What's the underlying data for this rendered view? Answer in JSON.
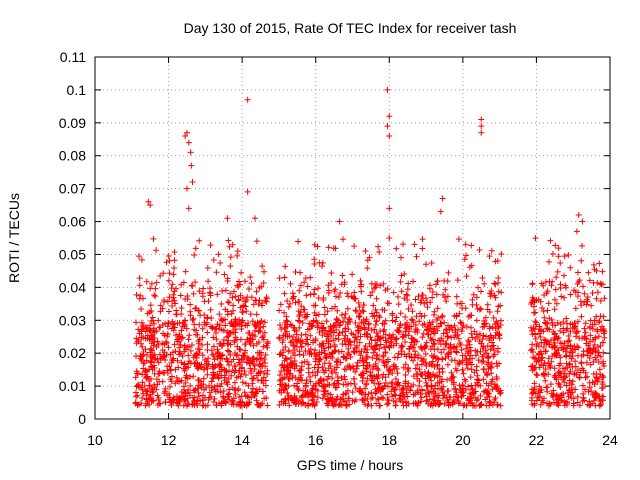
{
  "chart_data": {
    "type": "scatter",
    "title": "Day 130 of 2015, Rate Of TEC Index for receiver tash",
    "xlabel": "GPS time / hours",
    "ylabel": "ROTI / TECUs",
    "xlim": [
      10,
      24
    ],
    "ylim": [
      0,
      0.11
    ],
    "xticks": [
      10,
      12,
      14,
      16,
      18,
      20,
      22,
      24
    ],
    "yticks": [
      0,
      0.01,
      0.02,
      0.03,
      0.04,
      0.05,
      0.06,
      0.07,
      0.08,
      0.09,
      0.1,
      0.11
    ],
    "grid": true,
    "marker": "+",
    "color": "#ff0000",
    "coverage_segments": [
      {
        "x": [
          11.1,
          14.7
        ]
      },
      {
        "x": [
          15.0,
          21.05
        ]
      },
      {
        "x": [
          21.85,
          23.85
        ]
      }
    ],
    "notable_points": [
      {
        "x": 11.45,
        "y": 0.066
      },
      {
        "x": 11.5,
        "y": 0.065
      },
      {
        "x": 12.45,
        "y": 0.086
      },
      {
        "x": 12.5,
        "y": 0.087
      },
      {
        "x": 12.55,
        "y": 0.084
      },
      {
        "x": 12.6,
        "y": 0.081
      },
      {
        "x": 12.62,
        "y": 0.077
      },
      {
        "x": 12.65,
        "y": 0.072
      },
      {
        "x": 12.5,
        "y": 0.07
      },
      {
        "x": 12.55,
        "y": 0.064
      },
      {
        "x": 13.6,
        "y": 0.061
      },
      {
        "x": 14.15,
        "y": 0.097
      },
      {
        "x": 14.15,
        "y": 0.069
      },
      {
        "x": 14.35,
        "y": 0.061
      },
      {
        "x": 17.95,
        "y": 0.1
      },
      {
        "x": 18.0,
        "y": 0.092
      },
      {
        "x": 17.95,
        "y": 0.089
      },
      {
        "x": 18.0,
        "y": 0.086
      },
      {
        "x": 18.0,
        "y": 0.064
      },
      {
        "x": 18.0,
        "y": 0.055
      },
      {
        "x": 19.45,
        "y": 0.067
      },
      {
        "x": 19.4,
        "y": 0.063
      },
      {
        "x": 20.5,
        "y": 0.091
      },
      {
        "x": 20.5,
        "y": 0.089
      },
      {
        "x": 20.5,
        "y": 0.087
      },
      {
        "x": 23.15,
        "y": 0.062
      },
      {
        "x": 23.25,
        "y": 0.06
      },
      {
        "x": 23.1,
        "y": 0.057
      },
      {
        "x": 16.65,
        "y": 0.06
      },
      {
        "x": 20.95,
        "y": 0.048
      }
    ]
  }
}
